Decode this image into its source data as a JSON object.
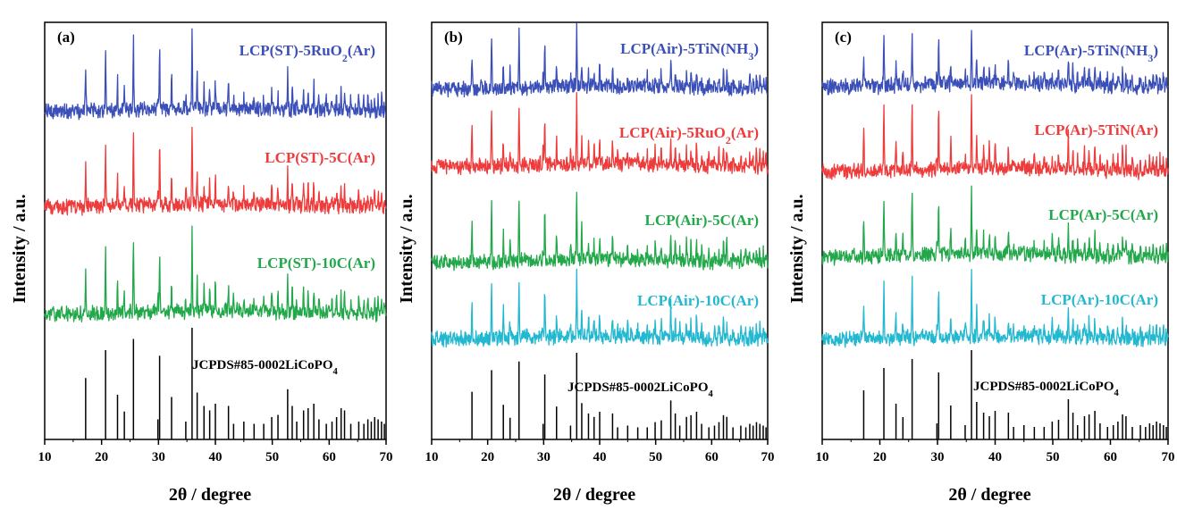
{
  "chart_data": [
    {
      "panel_label": "(a)",
      "type": "line",
      "xlabel": "2θ / degree",
      "ylabel": "Intensity / a.u.",
      "xlim": [
        10,
        70
      ],
      "x_ticks": [
        10,
        20,
        30,
        40,
        50,
        60,
        70
      ],
      "series": [
        {
          "name": "LCP(ST)-5RuO₂(Ar)",
          "color": "#3b4fb8"
        },
        {
          "name": "LCP(ST)-5C(Ar)",
          "color": "#ee3b3b"
        },
        {
          "name": "LCP(ST)-10C(Ar)",
          "color": "#22a84a"
        }
      ],
      "reference": {
        "name": "JCPDS#85-0002LiCoPO₄",
        "color": "#000000"
      }
    },
    {
      "panel_label": "(b)",
      "type": "line",
      "xlabel": "2θ / degree",
      "ylabel": "Intensity / a.u.",
      "xlim": [
        10,
        70
      ],
      "x_ticks": [
        10,
        20,
        30,
        40,
        50,
        60,
        70
      ],
      "series": [
        {
          "name": "LCP(Air)-5TiN(NH₃)",
          "color": "#3b4fb8"
        },
        {
          "name": "LCP(Air)-5RuO₂(Ar)",
          "color": "#ee3b3b"
        },
        {
          "name": "LCP(Air)-5C(Ar)",
          "color": "#22a84a"
        },
        {
          "name": "LCP(Air)-10C(Ar)",
          "color": "#22b8d0"
        }
      ],
      "reference": {
        "name": "JCPDS#85-0002LiCoPO₄",
        "color": "#000000"
      }
    },
    {
      "panel_label": "(c)",
      "type": "line",
      "xlabel": "2θ / degree",
      "ylabel": "Intensity / a.u.",
      "xlim": [
        10,
        70
      ],
      "x_ticks": [
        10,
        20,
        30,
        40,
        50,
        60,
        70
      ],
      "series": [
        {
          "name": "LCP(Ar)-5TiN(NH₃)",
          "color": "#3b4fb8"
        },
        {
          "name": "LCP(Ar)-5TiN(Ar)",
          "color": "#ee3b3b"
        },
        {
          "name": "LCP(Ar)-5C(Ar)",
          "color": "#22a84a"
        },
        {
          "name": "LCP(Ar)-10C(Ar)",
          "color": "#22b8d0"
        }
      ],
      "reference": {
        "name": "JCPDS#85-0002LiCoPO₄",
        "color": "#000000"
      }
    }
  ],
  "peaks": [
    [
      17.2,
      0.55
    ],
    [
      20.7,
      0.8
    ],
    [
      22.8,
      0.4
    ],
    [
      24.0,
      0.25
    ],
    [
      25.6,
      0.9
    ],
    [
      29.9,
      0.18
    ],
    [
      30.2,
      0.75
    ],
    [
      32.3,
      0.38
    ],
    [
      34.8,
      0.16
    ],
    [
      35.9,
      1.0
    ],
    [
      36.8,
      0.42
    ],
    [
      38.0,
      0.3
    ],
    [
      39.0,
      0.26
    ],
    [
      40.0,
      0.32
    ],
    [
      42.3,
      0.3
    ],
    [
      43.2,
      0.14
    ],
    [
      45.0,
      0.16
    ],
    [
      46.8,
      0.14
    ],
    [
      48.5,
      0.14
    ],
    [
      49.9,
      0.2
    ],
    [
      51.0,
      0.22
    ],
    [
      52.7,
      0.45
    ],
    [
      53.5,
      0.3
    ],
    [
      54.3,
      0.16
    ],
    [
      55.5,
      0.26
    ],
    [
      56.3,
      0.28
    ],
    [
      57.3,
      0.32
    ],
    [
      58.2,
      0.18
    ],
    [
      59.5,
      0.14
    ],
    [
      60.5,
      0.16
    ],
    [
      61.3,
      0.2
    ],
    [
      62.1,
      0.28
    ],
    [
      62.7,
      0.26
    ],
    [
      63.8,
      0.14
    ],
    [
      65.2,
      0.16
    ],
    [
      66.1,
      0.14
    ],
    [
      66.8,
      0.18
    ],
    [
      67.4,
      0.16
    ],
    [
      68.0,
      0.2
    ],
    [
      68.6,
      0.18
    ],
    [
      69.2,
      0.16
    ],
    [
      69.7,
      0.14
    ]
  ]
}
